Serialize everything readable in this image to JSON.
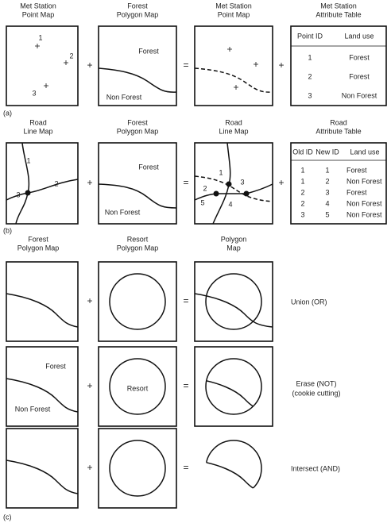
{
  "section_a": {
    "tag": "(a)",
    "headers": [
      [
        "Met Station",
        "Point Map"
      ],
      [
        "Forest",
        "Polygon Map"
      ],
      [
        "Met Station",
        "Point Map"
      ],
      [
        "Met Station",
        "Attribute Table"
      ]
    ],
    "operators": [
      "+",
      "=",
      "+"
    ],
    "point_labels": [
      "1",
      "2",
      "3"
    ],
    "polygon_labels": [
      "Forest",
      "Non Forest"
    ],
    "table": {
      "columns": [
        "Point ID",
        "Land use"
      ],
      "rows": [
        [
          "1",
          "Forest"
        ],
        [
          "2",
          "Forest"
        ],
        [
          "3",
          "Non Forest"
        ]
      ]
    }
  },
  "section_b": {
    "tag": "(b)",
    "headers": [
      [
        "Road",
        "Line Map"
      ],
      [
        "Forest",
        "Polygon Map"
      ],
      [
        "Road",
        "Line Map"
      ],
      [
        "Road",
        "Attribute Table"
      ]
    ],
    "operators": [
      "+",
      "=",
      "+"
    ],
    "line_labels": [
      "1",
      "2",
      "3"
    ],
    "polygon_labels": [
      "Forest",
      "Non Forest"
    ],
    "overlay_labels": [
      "1",
      "2",
      "3",
      "4",
      "5"
    ],
    "table": {
      "columns": [
        "Old ID",
        "New ID",
        "Land use"
      ],
      "rows": [
        [
          "1",
          "1",
          "Forest"
        ],
        [
          "1",
          "2",
          "Non Forest"
        ],
        [
          "2",
          "3",
          "Forest"
        ],
        [
          "2",
          "4",
          "Non Forest"
        ],
        [
          "3",
          "5",
          "Non Forest"
        ]
      ]
    }
  },
  "section_c": {
    "tag": "(c)",
    "headers": [
      [
        "Forest",
        "Polygon Map"
      ],
      [
        "Resort",
        "Polygon Map"
      ],
      [
        "Polygon",
        "Map"
      ]
    ],
    "rows": [
      {
        "operators": [
          "+",
          "="
        ],
        "operation": [
          "Union (OR)"
        ]
      },
      {
        "polygon_labels": [
          "Forest",
          "Non Forest"
        ],
        "resort_label": "Resort",
        "operators": [
          "+",
          "="
        ],
        "operation": [
          "Erase (NOT)",
          "(cookie cutting)"
        ]
      },
      {
        "operators": [
          "+",
          "="
        ],
        "operation": [
          "Intersect (AND)"
        ]
      }
    ]
  }
}
